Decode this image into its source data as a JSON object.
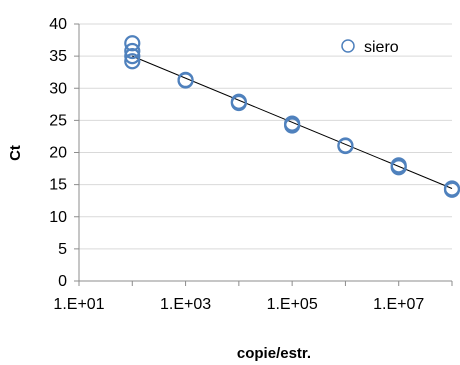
{
  "chart_data": {
    "type": "scatter",
    "xlabel": "copie/estr.",
    "ylabel": "Ct",
    "x_scale": "log",
    "xlim": [
      10,
      100000000
    ],
    "ylim": [
      0,
      40
    ],
    "x_ticks": [
      10,
      1000,
      100000,
      10000000
    ],
    "x_tick_labels": [
      "1.E+01",
      "1.E+03",
      "1.E+05",
      "1.E+07"
    ],
    "y_ticks": [
      0,
      5,
      10,
      15,
      20,
      25,
      30,
      35,
      40
    ],
    "y_tick_labels": [
      "0",
      "5",
      "10",
      "15",
      "20",
      "25",
      "30",
      "35",
      "40"
    ],
    "grid": "horizontal",
    "legend_position": "top-right",
    "series": [
      {
        "name": "siero",
        "color": "#4f81bd",
        "marker": "hollow-circle",
        "points": [
          {
            "x": 100,
            "y": 37.0
          },
          {
            "x": 100,
            "y": 35.8
          },
          {
            "x": 100,
            "y": 35.0
          },
          {
            "x": 100,
            "y": 34.2
          },
          {
            "x": 1000,
            "y": 31.2
          },
          {
            "x": 1000,
            "y": 31.3
          },
          {
            "x": 10000,
            "y": 27.9
          },
          {
            "x": 10000,
            "y": 27.7
          },
          {
            "x": 100000,
            "y": 24.5
          },
          {
            "x": 100000,
            "y": 24.2
          },
          {
            "x": 1000000,
            "y": 21.0
          },
          {
            "x": 1000000,
            "y": 21.1
          },
          {
            "x": 10000000,
            "y": 18.0
          },
          {
            "x": 10000000,
            "y": 17.7
          },
          {
            "x": 100000000,
            "y": 14.4
          },
          {
            "x": 100000000,
            "y": 14.2
          }
        ]
      }
    ],
    "trendline": {
      "color": "#000000",
      "from": {
        "x": 100,
        "y": 35.0
      },
      "to": {
        "x": 100000000,
        "y": 14.4
      }
    }
  }
}
